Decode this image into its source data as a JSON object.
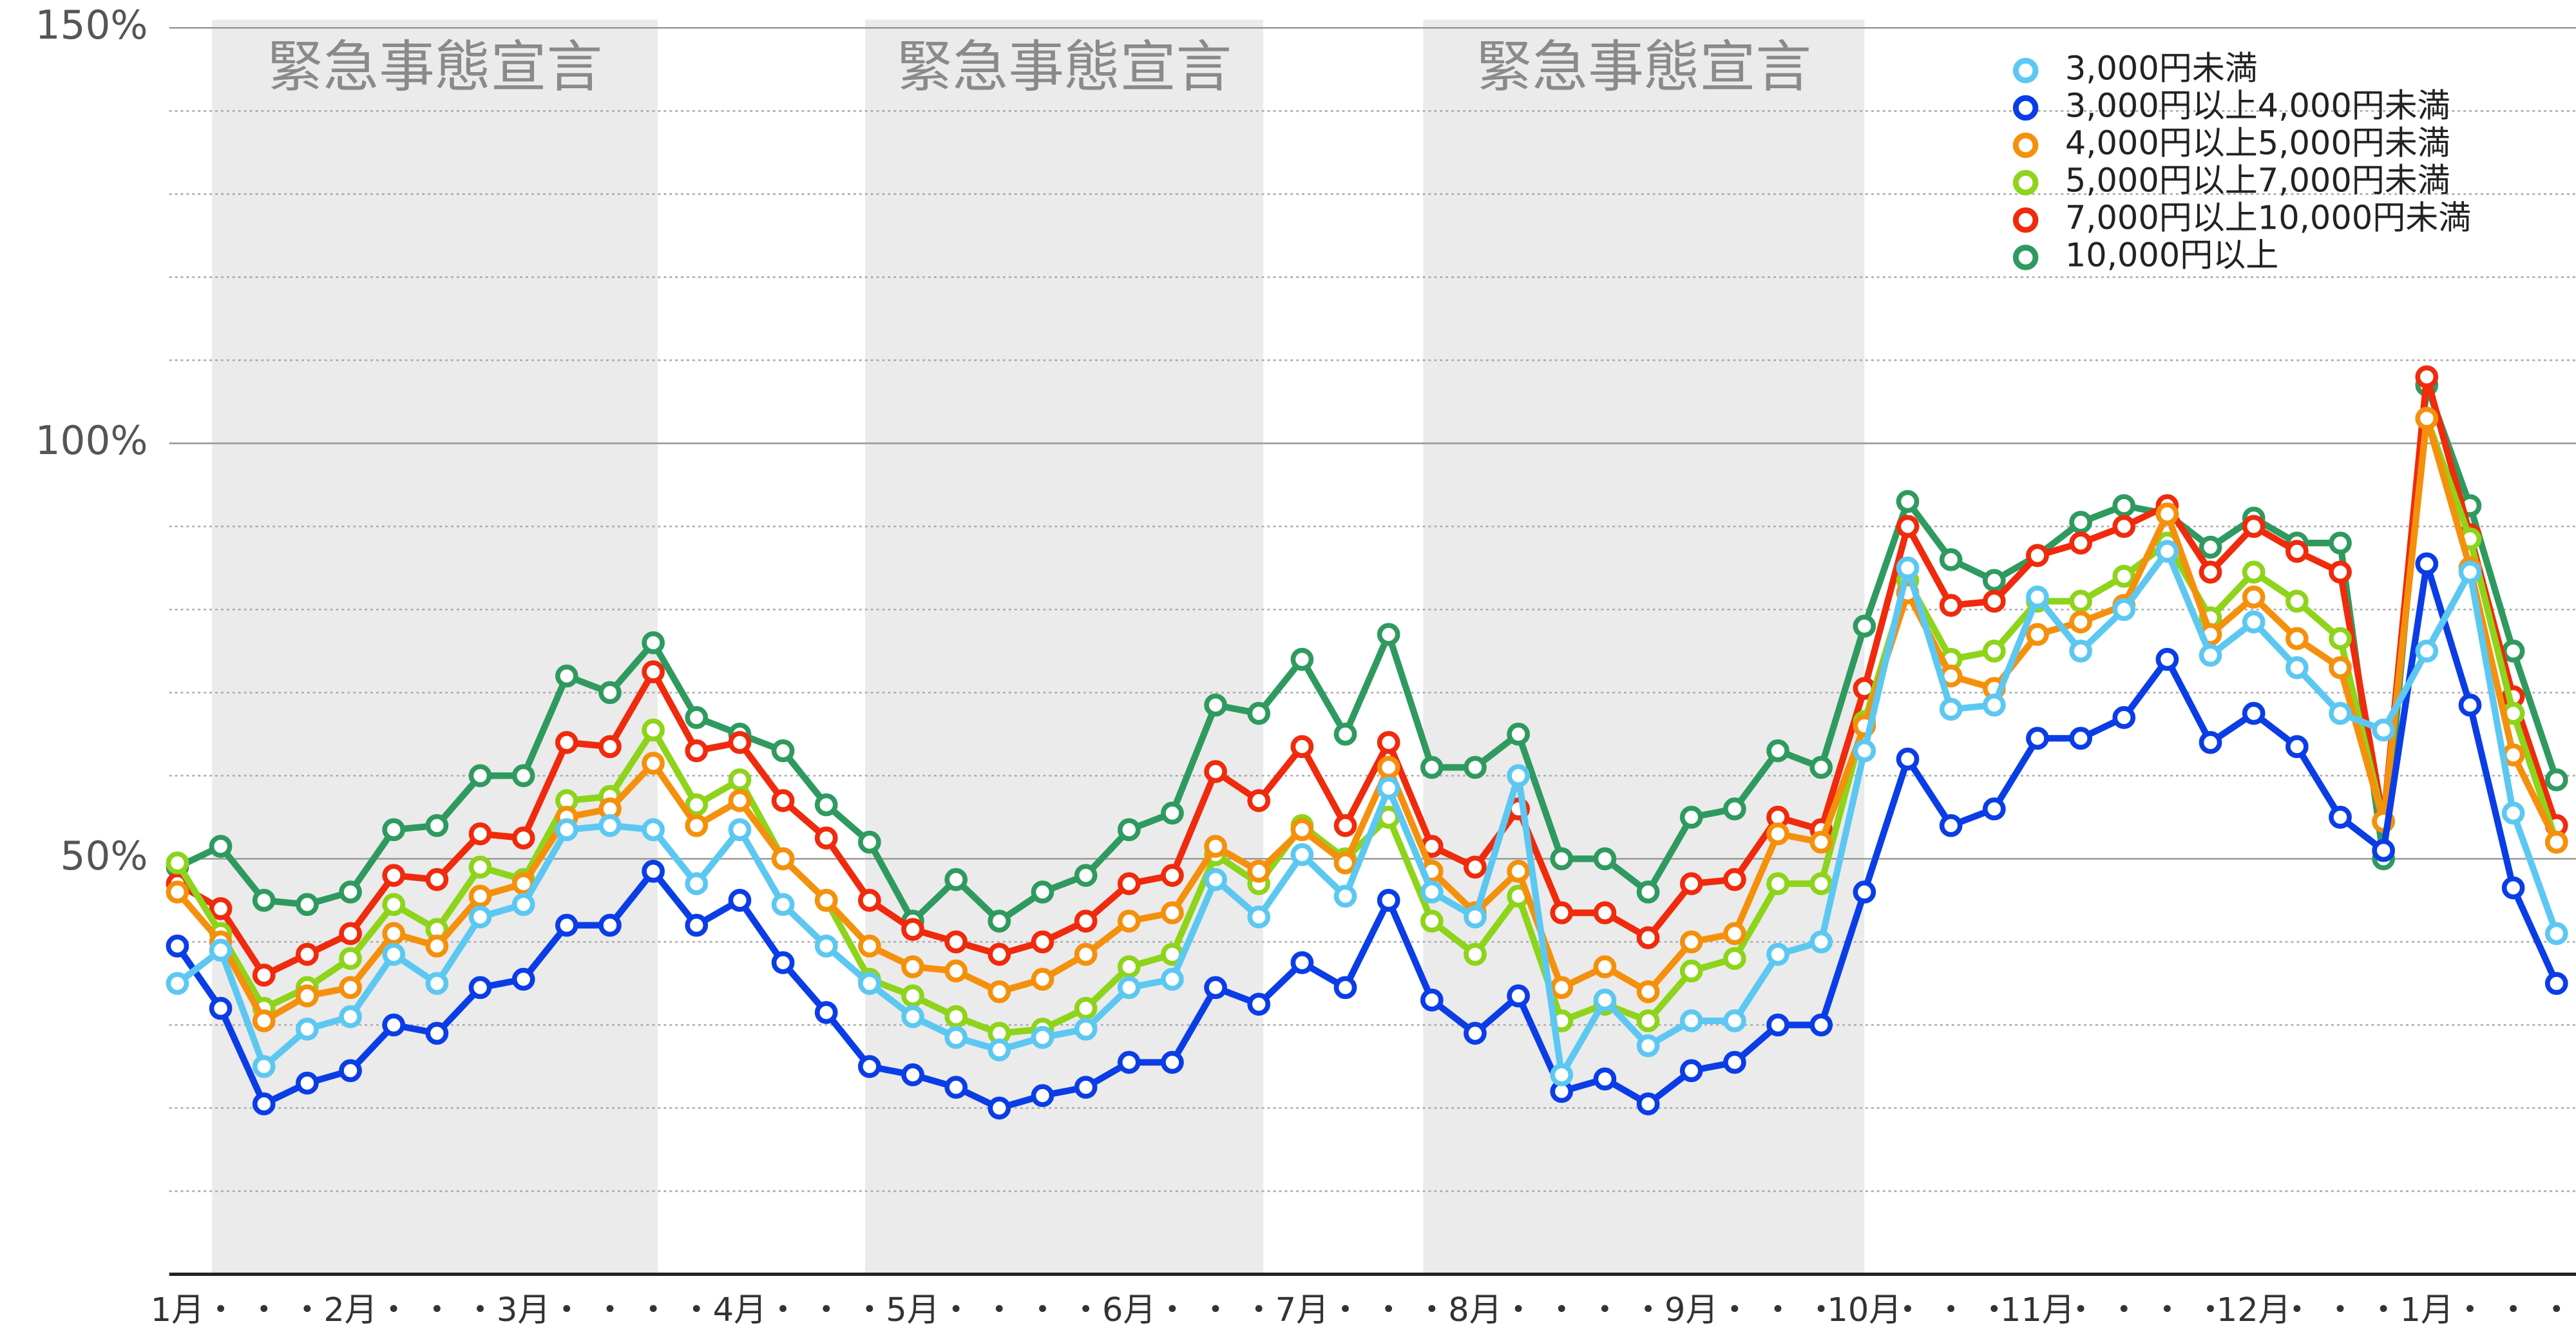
{
  "chart_data": {
    "type": "line",
    "categories": [
      "1月",
      "・",
      "・",
      "・",
      "2月",
      "・",
      "・",
      "・",
      "3月",
      "・",
      "・",
      "・",
      "・",
      "4月",
      "・",
      "・",
      "・",
      "5月",
      "・",
      "・",
      "・",
      "・",
      "6月",
      "・",
      "・",
      "・",
      "7月",
      "・",
      "・",
      "・",
      "8月",
      "・",
      "・",
      "・",
      "・",
      "9月",
      "・",
      "・",
      "・",
      "10月",
      "・",
      "・",
      "・",
      "11月",
      "・",
      "・",
      "・",
      "・",
      "12月",
      "・",
      "・",
      "・",
      "1月",
      "・",
      "・",
      "・"
    ],
    "ylim": [
      0,
      150
    ],
    "yticks": [
      {
        "value": 50,
        "label": "50%"
      },
      {
        "value": 100,
        "label": "100%"
      },
      {
        "value": 150,
        "label": "150%"
      }
    ],
    "minor_yticks": [
      10,
      20,
      30,
      40,
      60,
      70,
      80,
      90,
      110,
      120,
      130,
      140
    ],
    "grid": true,
    "legend": "upper right",
    "shaded_spans": [
      {
        "label": "緊急事態宣言",
        "start": 0.8,
        "end": 11.1
      },
      {
        "label": "緊急事態宣言",
        "start": 15.9,
        "end": 25.1
      },
      {
        "label": "緊急事態宣言",
        "start": 28.8,
        "end": 39
      }
    ],
    "series": [
      {
        "name": "3,000円未満",
        "color": "#5cc8f2",
        "values": [
          35,
          39,
          25,
          29.5,
          31,
          38.5,
          35,
          43,
          44.5,
          53.5,
          54,
          53.5,
          47,
          53.5,
          44.5,
          39.5,
          35,
          31,
          28.5,
          27,
          28.5,
          29.5,
          34.5,
          35.5,
          47.5,
          43,
          50.5,
          45.5,
          58.5,
          46,
          43,
          60,
          24,
          33,
          27.5,
          30.5,
          30.5,
          38.5,
          40,
          63,
          85,
          68,
          68.5,
          81.5,
          75,
          80,
          87,
          74.5,
          78.5,
          73,
          67.5,
          65.5,
          75,
          84.5,
          55.5,
          41
        ]
      },
      {
        "name": "3,000円以上4,000円未満",
        "color": "#0b3de6",
        "values": [
          39.5,
          32,
          20.5,
          23,
          24.5,
          30,
          29,
          34.5,
          35.5,
          42,
          42,
          48.5,
          42,
          45,
          37.5,
          31.5,
          25,
          24,
          22.5,
          20,
          21.5,
          22.5,
          25.5,
          25.5,
          34.5,
          32.5,
          37.5,
          34.5,
          45,
          33,
          29,
          33.5,
          22,
          23.5,
          20.5,
          24.5,
          25.5,
          30,
          30,
          46,
          62,
          54,
          56,
          64.5,
          64.5,
          67,
          74,
          64,
          67.5,
          63.5,
          55,
          51,
          85.5,
          68.5,
          46.5,
          35
        ]
      },
      {
        "name": "4,000円以上5,000円未満",
        "color": "#f5900c",
        "values": [
          46,
          40,
          30.5,
          33.5,
          34.5,
          41,
          39.5,
          45.5,
          47,
          55,
          56,
          61.5,
          54,
          57,
          50,
          45,
          39.5,
          37,
          36.5,
          34,
          35.5,
          38.5,
          42.5,
          43.5,
          51.5,
          48.5,
          53.5,
          49.5,
          61,
          48.5,
          43.5,
          48.5,
          34.5,
          37,
          34,
          40,
          41,
          53,
          52,
          66,
          82,
          72,
          70.5,
          77,
          78.5,
          80.5,
          91.5,
          77,
          81.5,
          76.5,
          73,
          54.5,
          103,
          85,
          62.5,
          52
        ]
      },
      {
        "name": "5,000円以上7,000円未満",
        "color": "#8dd41a",
        "values": [
          49.5,
          41,
          32,
          34.5,
          38,
          44.5,
          41.5,
          49,
          47.5,
          57,
          57.5,
          65.5,
          56.5,
          59.5,
          50,
          45,
          35.5,
          33.5,
          31,
          29,
          29.5,
          32,
          37,
          38.5,
          50.5,
          47,
          54,
          50,
          55,
          42.5,
          38.5,
          45.5,
          30.5,
          32.5,
          30.5,
          36.5,
          38,
          47,
          47,
          66.5,
          83.5,
          74,
          75,
          81,
          81,
          84,
          88,
          79,
          84.5,
          81,
          76.5,
          54.5,
          103,
          88.5,
          67.5,
          52
        ]
      },
      {
        "name": "7,000円以上10,000円未満",
        "color": "#f02a0c",
        "values": [
          47,
          44,
          36,
          38.5,
          41,
          48,
          47.5,
          53,
          52.5,
          64,
          63.5,
          72.5,
          63,
          64,
          57,
          52.5,
          45,
          41.5,
          40,
          38.5,
          40,
          42.5,
          47,
          48,
          60.5,
          57,
          63.5,
          54,
          64,
          51.5,
          49,
          56,
          43.5,
          43.5,
          40.5,
          47,
          47.5,
          55,
          53.5,
          70.5,
          90,
          80.5,
          81,
          86.5,
          88,
          90,
          92.5,
          84.5,
          90,
          87,
          84.5,
          54.5,
          108,
          89,
          69.5,
          54
        ]
      },
      {
        "name": "10,000円以上",
        "color": "#2f9a5f",
        "values": [
          49,
          51.5,
          45,
          44.5,
          46,
          53.5,
          54,
          60,
          60,
          72,
          70,
          76,
          67,
          65,
          63,
          56.5,
          52,
          42.5,
          47.5,
          42.5,
          46,
          48,
          53.5,
          55.5,
          68.5,
          67.5,
          74,
          65,
          77,
          61,
          61,
          65,
          50,
          50,
          46,
          55,
          56,
          63,
          61,
          78,
          93,
          86,
          83.5,
          86.5,
          90.5,
          92.5,
          91.5,
          87.5,
          91,
          88,
          88,
          50,
          107,
          92.5,
          75,
          59.5
        ]
      }
    ]
  }
}
